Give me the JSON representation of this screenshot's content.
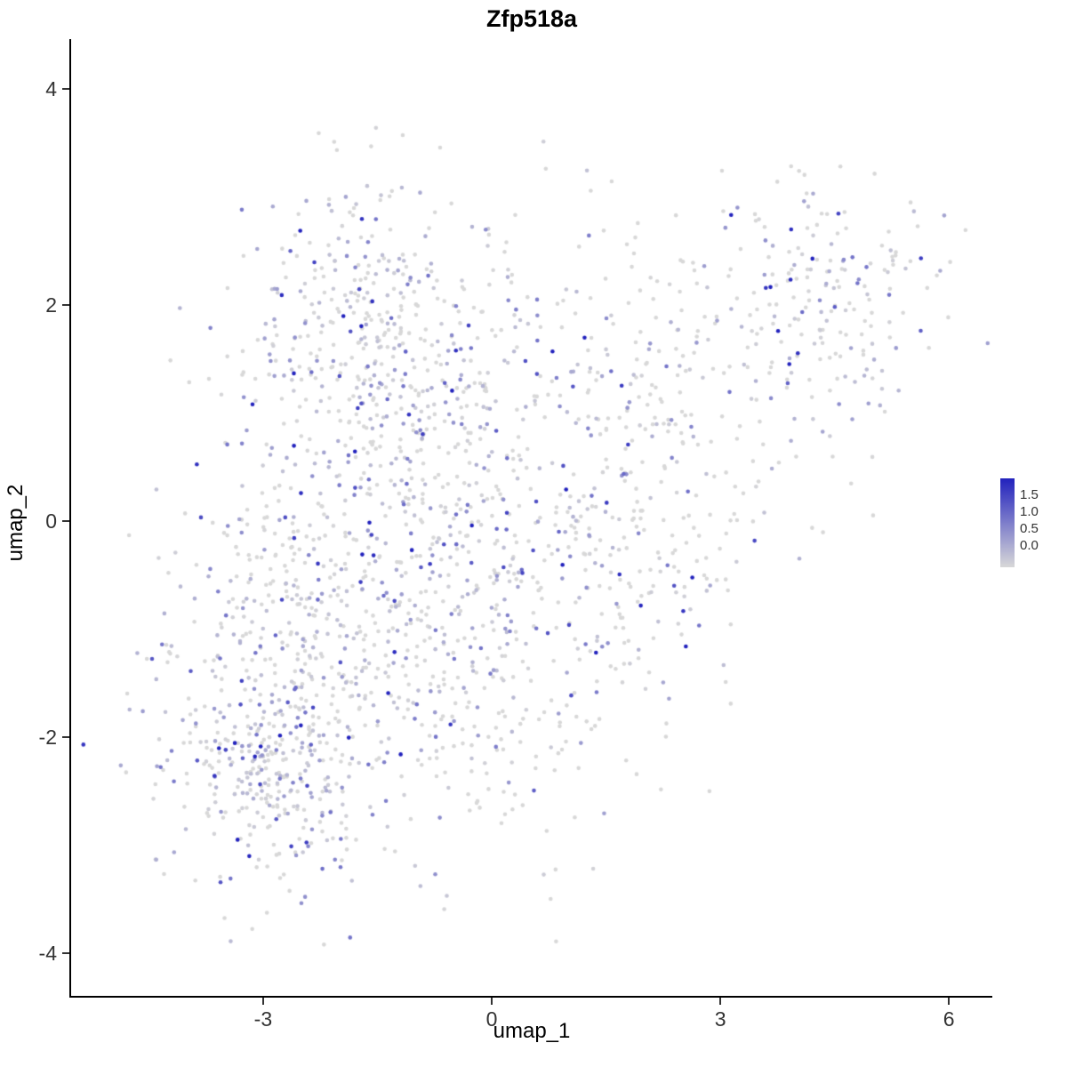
{
  "chart_data": {
    "type": "scatter",
    "title": "Zfp518a",
    "xlabel": "umap_1",
    "ylabel": "umap_2",
    "xlim": [
      -5.6,
      6.8
    ],
    "ylim": [
      -4.45,
      4.45
    ],
    "x_ticks": [
      "-3",
      "0",
      "3",
      "6"
    ],
    "x_tick_values": [
      -3,
      0,
      3,
      6
    ],
    "y_ticks": [
      "-4",
      "-2",
      "0",
      "2",
      "4"
    ],
    "y_tick_values": [
      -4,
      -2,
      0,
      2,
      4
    ],
    "grid": false,
    "legend": {
      "position": "right",
      "labels": [
        "1.5",
        "1.0",
        "0.5",
        "0.0"
      ],
      "values": [
        1.5,
        1.0,
        0.5,
        0.0
      ],
      "min": 0,
      "max": 1.75
    },
    "colors": {
      "low": "#d8d8d8",
      "high": "#2222bd"
    },
    "point_radius": 2.3,
    "approx_n_points": 2198,
    "seed": 20240518,
    "expr_exp_scale": 0.5,
    "clusters": [
      {
        "cx": -2.8,
        "cy": -2.2,
        "sx": 0.75,
        "sy": 0.6,
        "n": 420,
        "p_zero": 0.42
      },
      {
        "cx": -2.4,
        "cy": -0.6,
        "sx": 0.9,
        "sy": 0.7,
        "n": 300,
        "p_zero": 0.45
      },
      {
        "cx": -1.6,
        "cy": 1.7,
        "sx": 1.0,
        "sy": 0.75,
        "n": 400,
        "p_zero": 0.45
      },
      {
        "cx": -0.4,
        "cy": 0.3,
        "sx": 0.9,
        "sy": 0.9,
        "n": 240,
        "p_zero": 0.55
      },
      {
        "cx": -0.3,
        "cy": -1.5,
        "sx": 0.9,
        "sy": 0.8,
        "n": 220,
        "p_zero": 0.55
      },
      {
        "cx": 1.2,
        "cy": -0.3,
        "sx": 0.9,
        "sy": 1.0,
        "n": 160,
        "p_zero": 0.6
      },
      {
        "cx": 2.4,
        "cy": 0.3,
        "sx": 0.8,
        "sy": 0.9,
        "n": 130,
        "p_zero": 0.6
      },
      {
        "cx": 4.3,
        "cy": 2.0,
        "sx": 0.75,
        "sy": 0.6,
        "n": 210,
        "p_zero": 0.55
      },
      {
        "cx": 1.6,
        "cy": 1.7,
        "sx": 0.9,
        "sy": 0.7,
        "n": 110,
        "p_zero": 0.6
      },
      {
        "cx": -4.45,
        "cy": -1.25,
        "sx": 0.15,
        "sy": 0.2,
        "n": 8,
        "p_zero": 0.5
      }
    ]
  }
}
